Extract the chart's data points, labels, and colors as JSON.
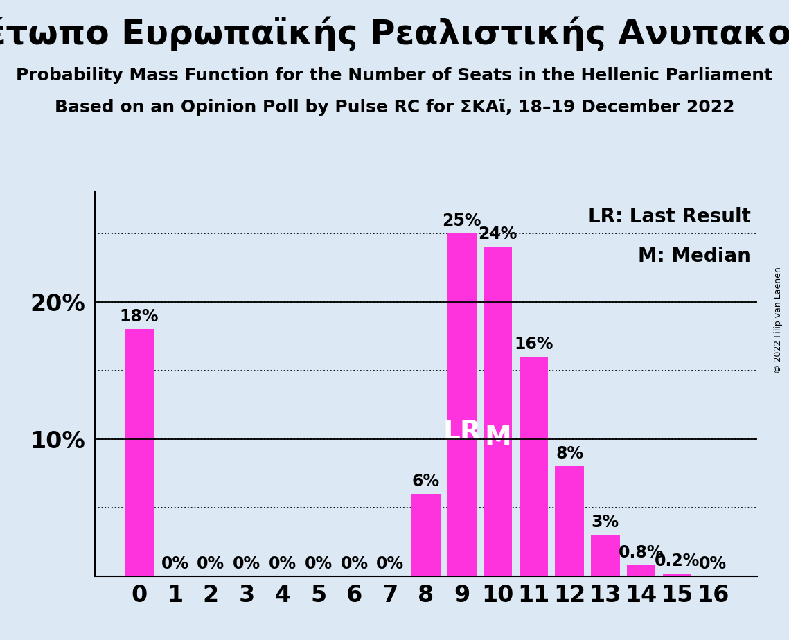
{
  "title_greek": "Μέτωπο Ευρωπαϊκής Ρεαλιστικής Ανυπακοής",
  "subtitle1": "Probability Mass Function for the Number of Seats in the Hellenic Parliament",
  "subtitle2": "Based on an Opinion Poll by Pulse RC for ΣΚΑϊ, 18–19 December 2022",
  "copyright": "© 2022 Filip van Laenen",
  "categories": [
    0,
    1,
    2,
    3,
    4,
    5,
    6,
    7,
    8,
    9,
    10,
    11,
    12,
    13,
    14,
    15,
    16
  ],
  "values": [
    18,
    0,
    0,
    0,
    0,
    0,
    0,
    0,
    6,
    25,
    24,
    16,
    8,
    3,
    0.8,
    0.2,
    0
  ],
  "bar_color": "#ff33dd",
  "background_color": "#dce9f5",
  "lr_index": 9,
  "median_index": 10,
  "legend_lr": "LR: Last Result",
  "legend_m": "M: Median",
  "ylim": [
    0,
    28
  ],
  "title_fontsize": 36,
  "subtitle_fontsize": 18,
  "axis_label_fontsize": 24,
  "bar_label_fontsize": 17,
  "inside_label_fontsize": 28,
  "legend_fontsize": 20,
  "copyright_fontsize": 9,
  "dotted_lines": [
    5,
    10,
    15,
    20,
    25
  ],
  "solid_lines": [
    10,
    20
  ]
}
